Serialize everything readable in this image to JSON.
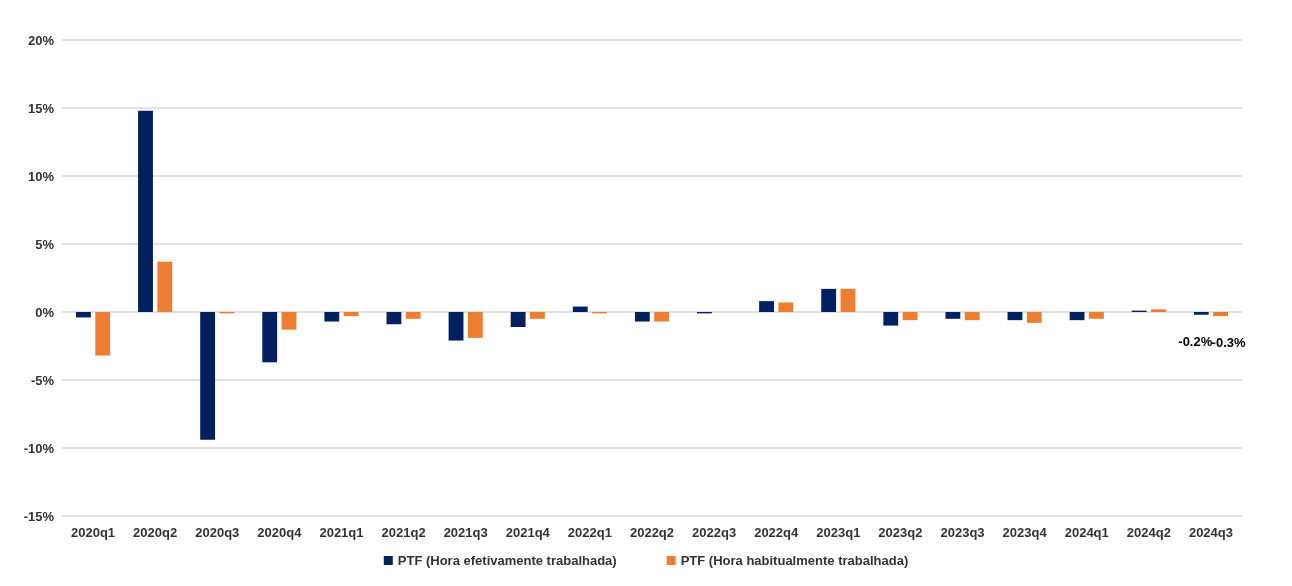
{
  "chart_data": {
    "type": "bar",
    "categories": [
      "2020q1",
      "2020q2",
      "2020q3",
      "2020q4",
      "2021q1",
      "2021q2",
      "2021q3",
      "2021q4",
      "2022q1",
      "2022q2",
      "2022q3",
      "2022q4",
      "2023q1",
      "2023q2",
      "2023q3",
      "2023q4",
      "2024q1",
      "2024q2",
      "2024q3"
    ],
    "series": [
      {
        "name": "PTF (Hora efetivamente trabalhada)",
        "color": "#002060",
        "values": [
          -0.4,
          14.8,
          -9.4,
          -3.7,
          -0.7,
          -0.9,
          -2.1,
          -1.1,
          0.4,
          -0.7,
          -0.1,
          0.8,
          1.7,
          -1.0,
          -0.5,
          -0.6,
          -0.6,
          0.1,
          -0.2
        ],
        "value_labels": [
          null,
          null,
          null,
          null,
          null,
          null,
          null,
          null,
          null,
          null,
          null,
          null,
          null,
          null,
          null,
          null,
          null,
          null,
          "-0.2%"
        ]
      },
      {
        "name": "PTF (Hora habitualmente trabalhada)",
        "color": "#ed7d31",
        "values": [
          -3.2,
          3.7,
          -0.1,
          -1.3,
          -0.3,
          -0.5,
          -1.9,
          -0.5,
          -0.1,
          -0.7,
          0.0,
          0.7,
          1.7,
          -0.6,
          -0.6,
          -0.8,
          -0.5,
          0.2,
          -0.3
        ],
        "value_labels": [
          null,
          null,
          null,
          null,
          null,
          null,
          null,
          null,
          null,
          null,
          null,
          null,
          null,
          null,
          null,
          null,
          null,
          null,
          "-0.3%"
        ]
      }
    ],
    "ylim": [
      -15,
      20
    ],
    "yticks": [
      {
        "value": -15,
        "label": "-15%"
      },
      {
        "value": -10,
        "label": "-10%"
      },
      {
        "value": -5,
        "label": "-5%"
      },
      {
        "value": 0,
        "label": "0%"
      },
      {
        "value": 5,
        "label": "5%"
      },
      {
        "value": 10,
        "label": "10%"
      },
      {
        "value": 15,
        "label": "15%"
      },
      {
        "value": 20,
        "label": "20%"
      }
    ],
    "grid": "y",
    "legend": "bottom"
  }
}
